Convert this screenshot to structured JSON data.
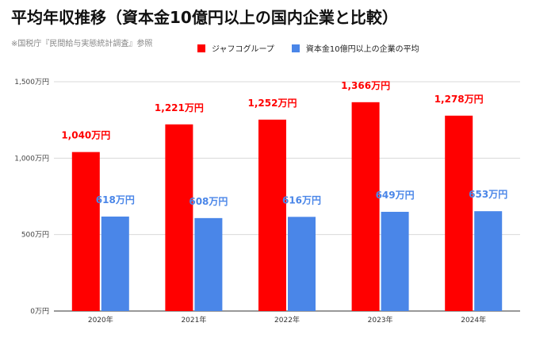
{
  "title": "平均年収推移（資本金10億円以上の国内企業と比較）",
  "source": "※国税庁『民間給与実態統計調査』参照",
  "chart_data": {
    "type": "bar",
    "categories": [
      "2020年",
      "2021年",
      "2022年",
      "2023年",
      "2024年"
    ],
    "series": [
      {
        "name": "ジャフコグループ",
        "color": "#ff0000",
        "values": [
          1040,
          1221,
          1252,
          1366,
          1278
        ],
        "labels": [
          "1,040万円",
          "1,221万円",
          "1,252万円",
          "1,366万円",
          "1,278万円"
        ]
      },
      {
        "name": "資本金10億円以上の企業の平均",
        "color": "#4a86e8",
        "values": [
          618,
          608,
          616,
          649,
          653
        ],
        "labels": [
          "618万円",
          "608万円",
          "616万円",
          "649万円",
          "653万円"
        ]
      }
    ],
    "yticks": [
      0,
      500,
      1000,
      1500
    ],
    "ytick_labels": [
      "0万円",
      "500万円",
      "1,000万円",
      "1,500万円"
    ],
    "ylim": [
      0,
      1500
    ],
    "grid": true,
    "legend_position": "top-center"
  }
}
